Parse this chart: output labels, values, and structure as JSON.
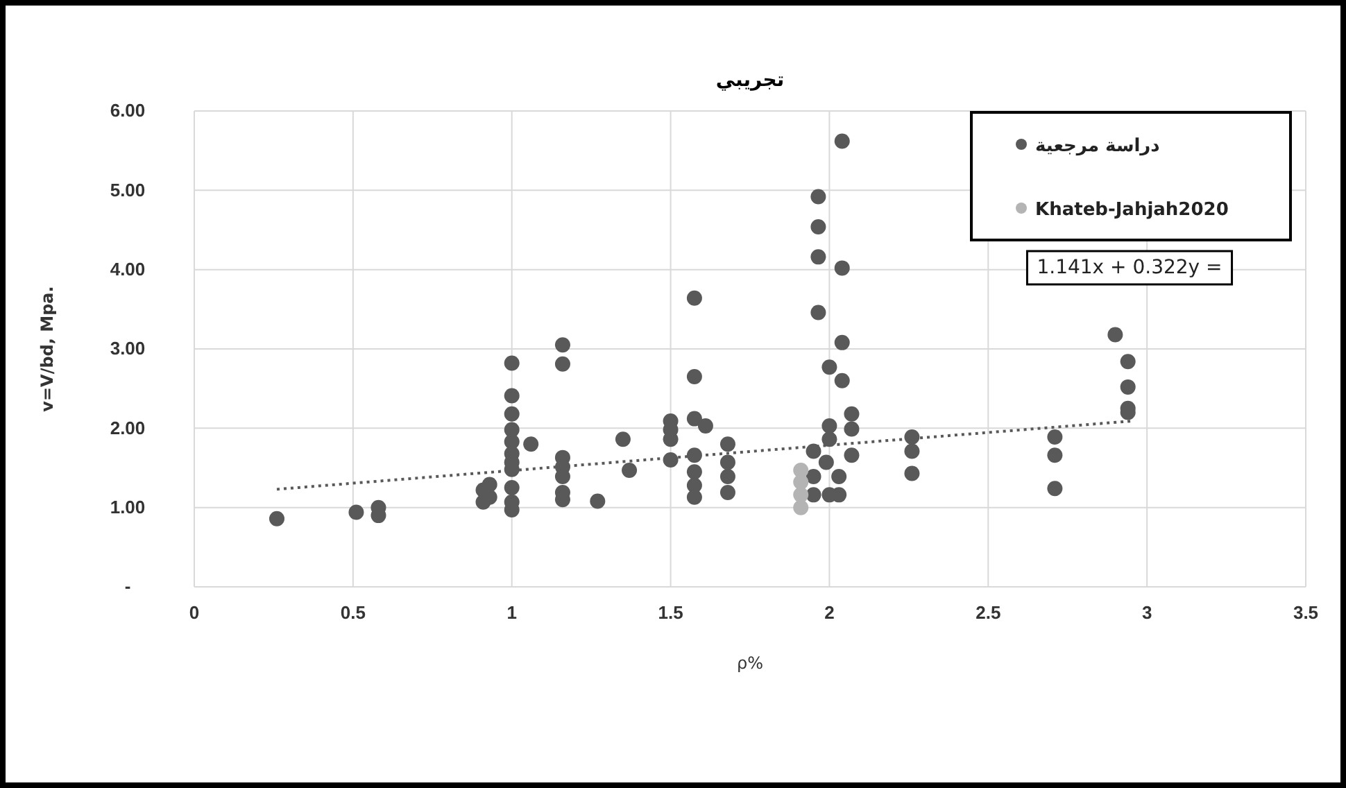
{
  "chart_data": {
    "type": "scatter",
    "title": "تجريبي",
    "xlabel": "ρ%",
    "ylabel": "v=V/bd, Mpa.",
    "annotations": [
      "1.141x + 0.322y ="
    ],
    "xlim": [
      0,
      3.5
    ],
    "xticks": [
      0,
      0.5,
      1,
      1.5,
      2,
      2.5,
      3,
      3.5
    ],
    "ylim": [
      0,
      6
    ],
    "yticks": [
      {
        "value": 0,
        "label": "-"
      },
      {
        "value": 1,
        "label": "1.00"
      },
      {
        "value": 2,
        "label": "2.00"
      },
      {
        "value": 3,
        "label": "3.00"
      },
      {
        "value": 4,
        "label": "4.00"
      },
      {
        "value": 5,
        "label": "5.00"
      },
      {
        "value": 6,
        "label": "6.00"
      }
    ],
    "grid": true,
    "legend": "top right",
    "marker": "circle",
    "series": [
      {
        "name": "دراسة مرجعية",
        "color": "#595959",
        "x": [
          0.26,
          0.51,
          0.58,
          0.58,
          0.91,
          0.91,
          0.93,
          0.93,
          1.0,
          1.0,
          1.0,
          1.0,
          1.0,
          1.0,
          1.0,
          1.0,
          1.0,
          1.0,
          1.0,
          1.06,
          1.16,
          1.16,
          1.16,
          1.16,
          1.16,
          1.16,
          1.16,
          1.27,
          1.35,
          1.37,
          1.5,
          1.5,
          1.5,
          1.5,
          1.575,
          1.575,
          1.575,
          1.61,
          1.575,
          1.575,
          1.575,
          1.575,
          1.68,
          1.68,
          1.68,
          1.68,
          1.965,
          1.965,
          1.965,
          1.965,
          2.04,
          2.04,
          2.04,
          2.0,
          2.04,
          2.07,
          2.07,
          2.07,
          2.0,
          2.0,
          1.95,
          1.95,
          1.95,
          1.99,
          2.03,
          2.03,
          2.0,
          2.26,
          2.26,
          2.26,
          2.71,
          2.71,
          2.71,
          2.9,
          2.94,
          2.94,
          2.94,
          2.94
        ],
        "values": [
          0.86,
          0.94,
          1.0,
          0.9,
          1.22,
          1.07,
          1.29,
          1.13,
          2.82,
          2.41,
          2.18,
          1.98,
          1.83,
          1.68,
          1.57,
          1.48,
          1.25,
          1.07,
          0.97,
          1.8,
          3.05,
          2.81,
          1.63,
          1.51,
          1.39,
          1.19,
          1.1,
          1.08,
          1.86,
          1.47,
          2.09,
          1.98,
          1.86,
          1.6,
          3.64,
          2.65,
          2.12,
          2.03,
          1.66,
          1.45,
          1.28,
          1.13,
          1.8,
          1.57,
          1.39,
          1.19,
          4.92,
          4.54,
          4.16,
          3.46,
          5.62,
          4.02,
          3.08,
          2.77,
          2.6,
          2.18,
          1.99,
          1.66,
          2.03,
          1.86,
          1.71,
          1.39,
          1.16,
          1.57,
          1.39,
          1.16,
          1.16,
          1.89,
          1.71,
          1.43,
          1.89,
          1.66,
          1.24,
          3.18,
          2.84,
          2.52,
          2.25,
          2.2
        ]
      },
      {
        "name": "Khateb-Jahjah2020",
        "color": "#b4b4b4",
        "x": [
          1.91,
          1.91,
          1.91,
          1.91
        ],
        "values": [
          1.0,
          1.16,
          1.32,
          1.47
        ]
      },
      {
        "type": "line",
        "color": "#595959",
        "line_style": "dotted",
        "marker": "none",
        "x": [
          0.26,
          2.95
        ],
        "values": [
          1.23,
          2.09
        ]
      }
    ]
  }
}
